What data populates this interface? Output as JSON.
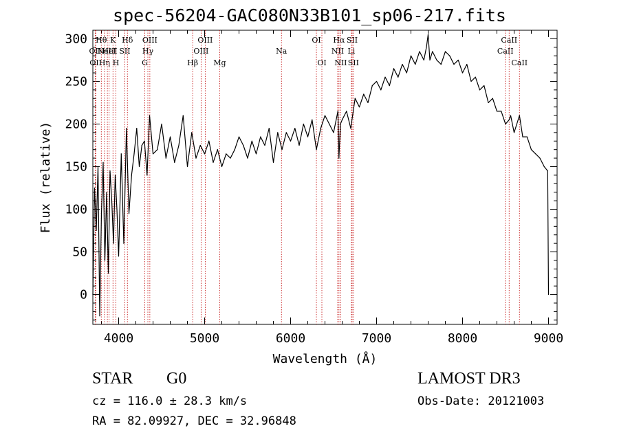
{
  "chart_data": {
    "type": "line",
    "title": "spec-56204-GAC080N33B101_sp06-217.fits",
    "xlabel": "Wavelength (Å)",
    "ylabel": "Flux (relative)",
    "xlim": [
      3700,
      9100
    ],
    "ylim": [
      -35,
      310
    ],
    "x_ticks": [
      4000,
      5000,
      6000,
      7000,
      8000,
      9000
    ],
    "y_ticks": [
      0,
      50,
      100,
      150,
      200,
      250,
      300
    ],
    "grid": false,
    "series": [
      {
        "name": "flux",
        "x": [
          3700,
          3720,
          3740,
          3760,
          3780,
          3800,
          3820,
          3840,
          3860,
          3880,
          3900,
          3920,
          3940,
          3960,
          3980,
          4000,
          4030,
          4060,
          4090,
          4120,
          4150,
          4180,
          4210,
          4240,
          4270,
          4300,
          4330,
          4360,
          4400,
          4450,
          4500,
          4550,
          4600,
          4650,
          4700,
          4750,
          4800,
          4850,
          4900,
          4950,
          5000,
          5050,
          5100,
          5150,
          5200,
          5250,
          5300,
          5350,
          5400,
          5450,
          5500,
          5550,
          5600,
          5650,
          5700,
          5750,
          5800,
          5850,
          5900,
          5950,
          6000,
          6050,
          6100,
          6150,
          6200,
          6250,
          6300,
          6350,
          6400,
          6450,
          6500,
          6550,
          6562,
          6580,
          6600,
          6650,
          6700,
          6750,
          6800,
          6850,
          6900,
          6950,
          7000,
          7050,
          7100,
          7150,
          7200,
          7250,
          7300,
          7350,
          7400,
          7450,
          7500,
          7550,
          7580,
          7600,
          7620,
          7650,
          7700,
          7750,
          7800,
          7850,
          7900,
          7950,
          8000,
          8050,
          8100,
          8150,
          8200,
          8250,
          8300,
          8350,
          8400,
          8450,
          8500,
          8542,
          8560,
          8600,
          8662,
          8700,
          8750,
          8800,
          8850,
          8900,
          8950,
          8990,
          9000
        ],
        "y": [
          0,
          125,
          75,
          150,
          -25,
          95,
          155,
          40,
          120,
          25,
          145,
          110,
          60,
          140,
          100,
          45,
          165,
          60,
          195,
          95,
          140,
          165,
          195,
          150,
          175,
          180,
          140,
          210,
          165,
          170,
          200,
          160,
          185,
          155,
          175,
          210,
          150,
          190,
          160,
          175,
          165,
          180,
          155,
          170,
          150,
          165,
          160,
          170,
          185,
          175,
          160,
          180,
          165,
          185,
          175,
          195,
          155,
          190,
          170,
          190,
          180,
          195,
          175,
          200,
          185,
          205,
          170,
          195,
          210,
          200,
          190,
          215,
          160,
          200,
          205,
          215,
          195,
          230,
          220,
          235,
          225,
          245,
          250,
          240,
          255,
          245,
          265,
          255,
          270,
          260,
          280,
          270,
          285,
          275,
          290,
          305,
          275,
          285,
          275,
          270,
          285,
          280,
          270,
          275,
          260,
          270,
          250,
          255,
          240,
          245,
          225,
          230,
          215,
          215,
          200,
          205,
          210,
          190,
          210,
          185,
          185,
          170,
          165,
          160,
          150,
          145,
          0
        ]
      }
    ],
    "line_markers": [
      {
        "wavelength": 3727,
        "label": "OII",
        "row": 2
      },
      {
        "wavelength": 3734,
        "label": "OII",
        "row": 3
      },
      {
        "wavelength": 3798,
        "label": "Hθ",
        "row": 1
      },
      {
        "wavelength": 3835,
        "label": "Hη",
        "row": 3
      },
      {
        "wavelength": 3869,
        "label": "NeIII",
        "row": 2
      },
      {
        "wavelength": 3889,
        "label": "HeI",
        "row": 2
      },
      {
        "wavelength": 3934,
        "label": "K",
        "row": 1
      },
      {
        "wavelength": 3968,
        "label": "H",
        "row": 3
      },
      {
        "wavelength": 4072,
        "label": "SII",
        "row": 2
      },
      {
        "wavelength": 4102,
        "label": "Hδ",
        "row": 1
      },
      {
        "wavelength": 4304,
        "label": "G",
        "row": 3
      },
      {
        "wavelength": 4340,
        "label": "Hγ",
        "row": 2
      },
      {
        "wavelength": 4363,
        "label": "OIII",
        "row": 1
      },
      {
        "wavelength": 4861,
        "label": "Hβ",
        "row": 3
      },
      {
        "wavelength": 4959,
        "label": "OIII",
        "row": 2
      },
      {
        "wavelength": 5007,
        "label": "OIII",
        "row": 1
      },
      {
        "wavelength": 5175,
        "label": "Mg",
        "row": 3
      },
      {
        "wavelength": 5894,
        "label": "Na",
        "row": 2
      },
      {
        "wavelength": 6300,
        "label": "OI",
        "row": 1
      },
      {
        "wavelength": 6364,
        "label": "OI",
        "row": 3
      },
      {
        "wavelength": 6548,
        "label": "NII",
        "row": 2
      },
      {
        "wavelength": 6563,
        "label": "Hα",
        "row": 1
      },
      {
        "wavelength": 6583,
        "label": "NII",
        "row": 3
      },
      {
        "wavelength": 6707,
        "label": "Li",
        "row": 2
      },
      {
        "wavelength": 6716,
        "label": "SII",
        "row": 1
      },
      {
        "wavelength": 6731,
        "label": "SII",
        "row": 3
      },
      {
        "wavelength": 8498,
        "label": "CaII",
        "row": 2
      },
      {
        "wavelength": 8542,
        "label": "CaII",
        "row": 1
      },
      {
        "wavelength": 8662,
        "label": "CaII",
        "row": 3
      }
    ]
  },
  "info": {
    "object_class": "STAR",
    "subclass": "G0",
    "survey": "LAMOST DR3",
    "redshift": "cz = 116.0 ± 28.3 km/s",
    "obs_date": "Obs-Date: 20121003",
    "coords": "RA =  82.09927, DEC =  32.96848"
  }
}
